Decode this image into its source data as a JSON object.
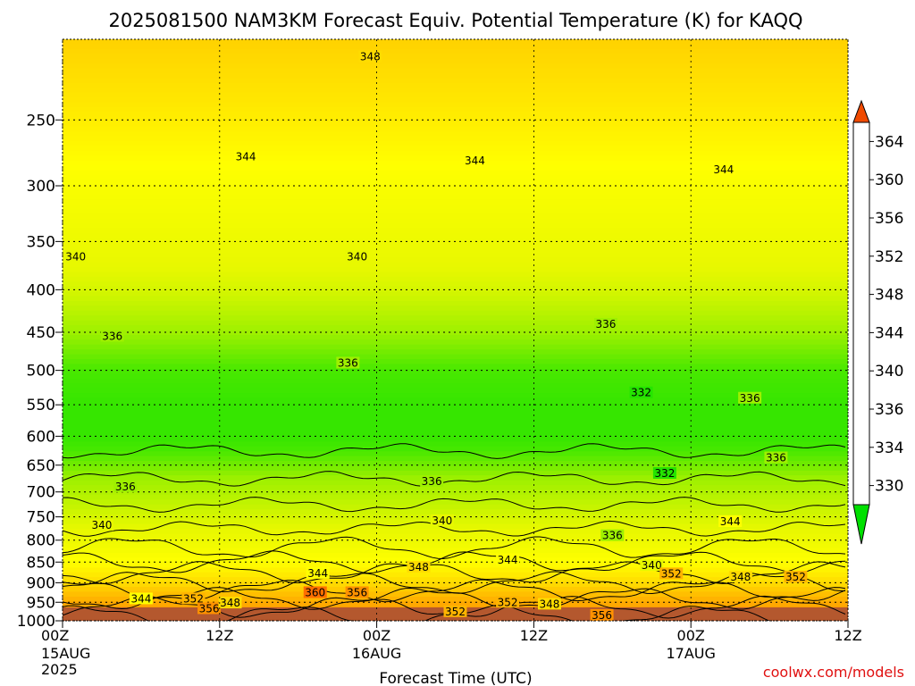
{
  "chart_data": {
    "type": "heatmap",
    "title": "2025081500 NAM3KM Forecast Equiv. Potential Temperature (K) for KAQQ",
    "xlabel": "Forecast Time (UTC)",
    "ylabel": "",
    "y_scale": "log-pressure",
    "y_unit": "hPa",
    "ylim": [
      1000,
      200
    ],
    "y_ticks": [
      250,
      300,
      350,
      400,
      450,
      500,
      550,
      600,
      650,
      700,
      750,
      800,
      850,
      900,
      950,
      1000
    ],
    "x_ticks": [
      {
        "hours": 0,
        "l1": "00Z",
        "l2": "15AUG",
        "l3": "2025"
      },
      {
        "hours": 12,
        "l1": "12Z",
        "l2": "",
        "l3": ""
      },
      {
        "hours": 24,
        "l1": "00Z",
        "l2": "16AUG",
        "l3": ""
      },
      {
        "hours": 36,
        "l1": "12Z",
        "l2": "",
        "l3": ""
      },
      {
        "hours": 48,
        "l1": "00Z",
        "l2": "17AUG",
        "l3": ""
      },
      {
        "hours": 60,
        "l1": "12Z",
        "l2": "",
        "l3": ""
      }
    ],
    "xlim_hours": [
      0,
      60
    ],
    "grid": true,
    "colorbar": {
      "labels": [
        "330",
        "334",
        "336",
        "340",
        "344",
        "348",
        "352",
        "356",
        "360",
        "364"
      ],
      "colors": [
        "#00e000",
        "#48e800",
        "#9ef000",
        "#e8f800",
        "#ffff00",
        "#ffdc00",
        "#ffb400",
        "#ff9100",
        "#ff6e00",
        "#f04a00"
      ]
    },
    "profile": [
      {
        "p": 200,
        "theta_e": 349
      },
      {
        "p": 250,
        "theta_e": 346
      },
      {
        "p": 300,
        "theta_e": 343
      },
      {
        "p": 350,
        "theta_e": 341
      },
      {
        "p": 400,
        "theta_e": 339
      },
      {
        "p": 450,
        "theta_e": 336
      },
      {
        "p": 500,
        "theta_e": 334
      },
      {
        "p": 550,
        "theta_e": 333
      },
      {
        "p": 600,
        "theta_e": 333
      },
      {
        "p": 650,
        "theta_e": 335
      },
      {
        "p": 700,
        "theta_e": 337
      },
      {
        "p": 750,
        "theta_e": 339
      },
      {
        "p": 800,
        "theta_e": 341
      },
      {
        "p": 850,
        "theta_e": 344
      },
      {
        "p": 900,
        "theta_e": 348
      },
      {
        "p": 950,
        "theta_e": 353
      },
      {
        "p": 1000,
        "theta_e": 357
      }
    ],
    "contour_labels": [
      {
        "text": "348",
        "hours": 23.5,
        "p": 210
      },
      {
        "text": "344",
        "hours": 14.0,
        "p": 277
      },
      {
        "text": "344",
        "hours": 31.5,
        "p": 280
      },
      {
        "text": "344",
        "hours": 50.5,
        "p": 287
      },
      {
        "text": "340",
        "hours": 1.0,
        "p": 365
      },
      {
        "text": "340",
        "hours": 22.5,
        "p": 365
      },
      {
        "text": "336",
        "hours": 3.8,
        "p": 455
      },
      {
        "text": "336",
        "hours": 21.8,
        "p": 490
      },
      {
        "text": "336",
        "hours": 41.5,
        "p": 440
      },
      {
        "text": "336",
        "hours": 52.5,
        "p": 540
      },
      {
        "text": "336",
        "hours": 54.5,
        "p": 637
      },
      {
        "text": "336",
        "hours": 4.8,
        "p": 690
      },
      {
        "text": "336",
        "hours": 28.2,
        "p": 680
      },
      {
        "text": "336",
        "hours": 42.0,
        "p": 790
      },
      {
        "text": "332",
        "hours": 44.2,
        "p": 532
      },
      {
        "text": "332",
        "hours": 46.0,
        "p": 665
      },
      {
        "text": "340",
        "hours": 3.0,
        "p": 768
      },
      {
        "text": "340",
        "hours": 29.0,
        "p": 758
      },
      {
        "text": "344",
        "hours": 19.5,
        "p": 877
      },
      {
        "text": "344",
        "hours": 34.0,
        "p": 845
      },
      {
        "text": "344",
        "hours": 51.0,
        "p": 760
      },
      {
        "text": "340",
        "hours": 45.0,
        "p": 858
      },
      {
        "text": "348",
        "hours": 27.2,
        "p": 862
      },
      {
        "text": "348",
        "hours": 51.8,
        "p": 886
      },
      {
        "text": "352",
        "hours": 46.5,
        "p": 878
      },
      {
        "text": "352",
        "hours": 56.0,
        "p": 886
      },
      {
        "text": "344",
        "hours": 6.0,
        "p": 941
      },
      {
        "text": "352",
        "hours": 10.0,
        "p": 941
      },
      {
        "text": "356",
        "hours": 11.2,
        "p": 967
      },
      {
        "text": "348",
        "hours": 12.8,
        "p": 952
      },
      {
        "text": "360",
        "hours": 19.3,
        "p": 925
      },
      {
        "text": "356",
        "hours": 22.5,
        "p": 925
      },
      {
        "text": "352",
        "hours": 34.0,
        "p": 950
      },
      {
        "text": "352",
        "hours": 30.0,
        "p": 975
      },
      {
        "text": "348",
        "hours": 37.2,
        "p": 955
      },
      {
        "text": "356",
        "hours": 41.2,
        "p": 985
      }
    ]
  },
  "credit": "coolwx.com/models"
}
